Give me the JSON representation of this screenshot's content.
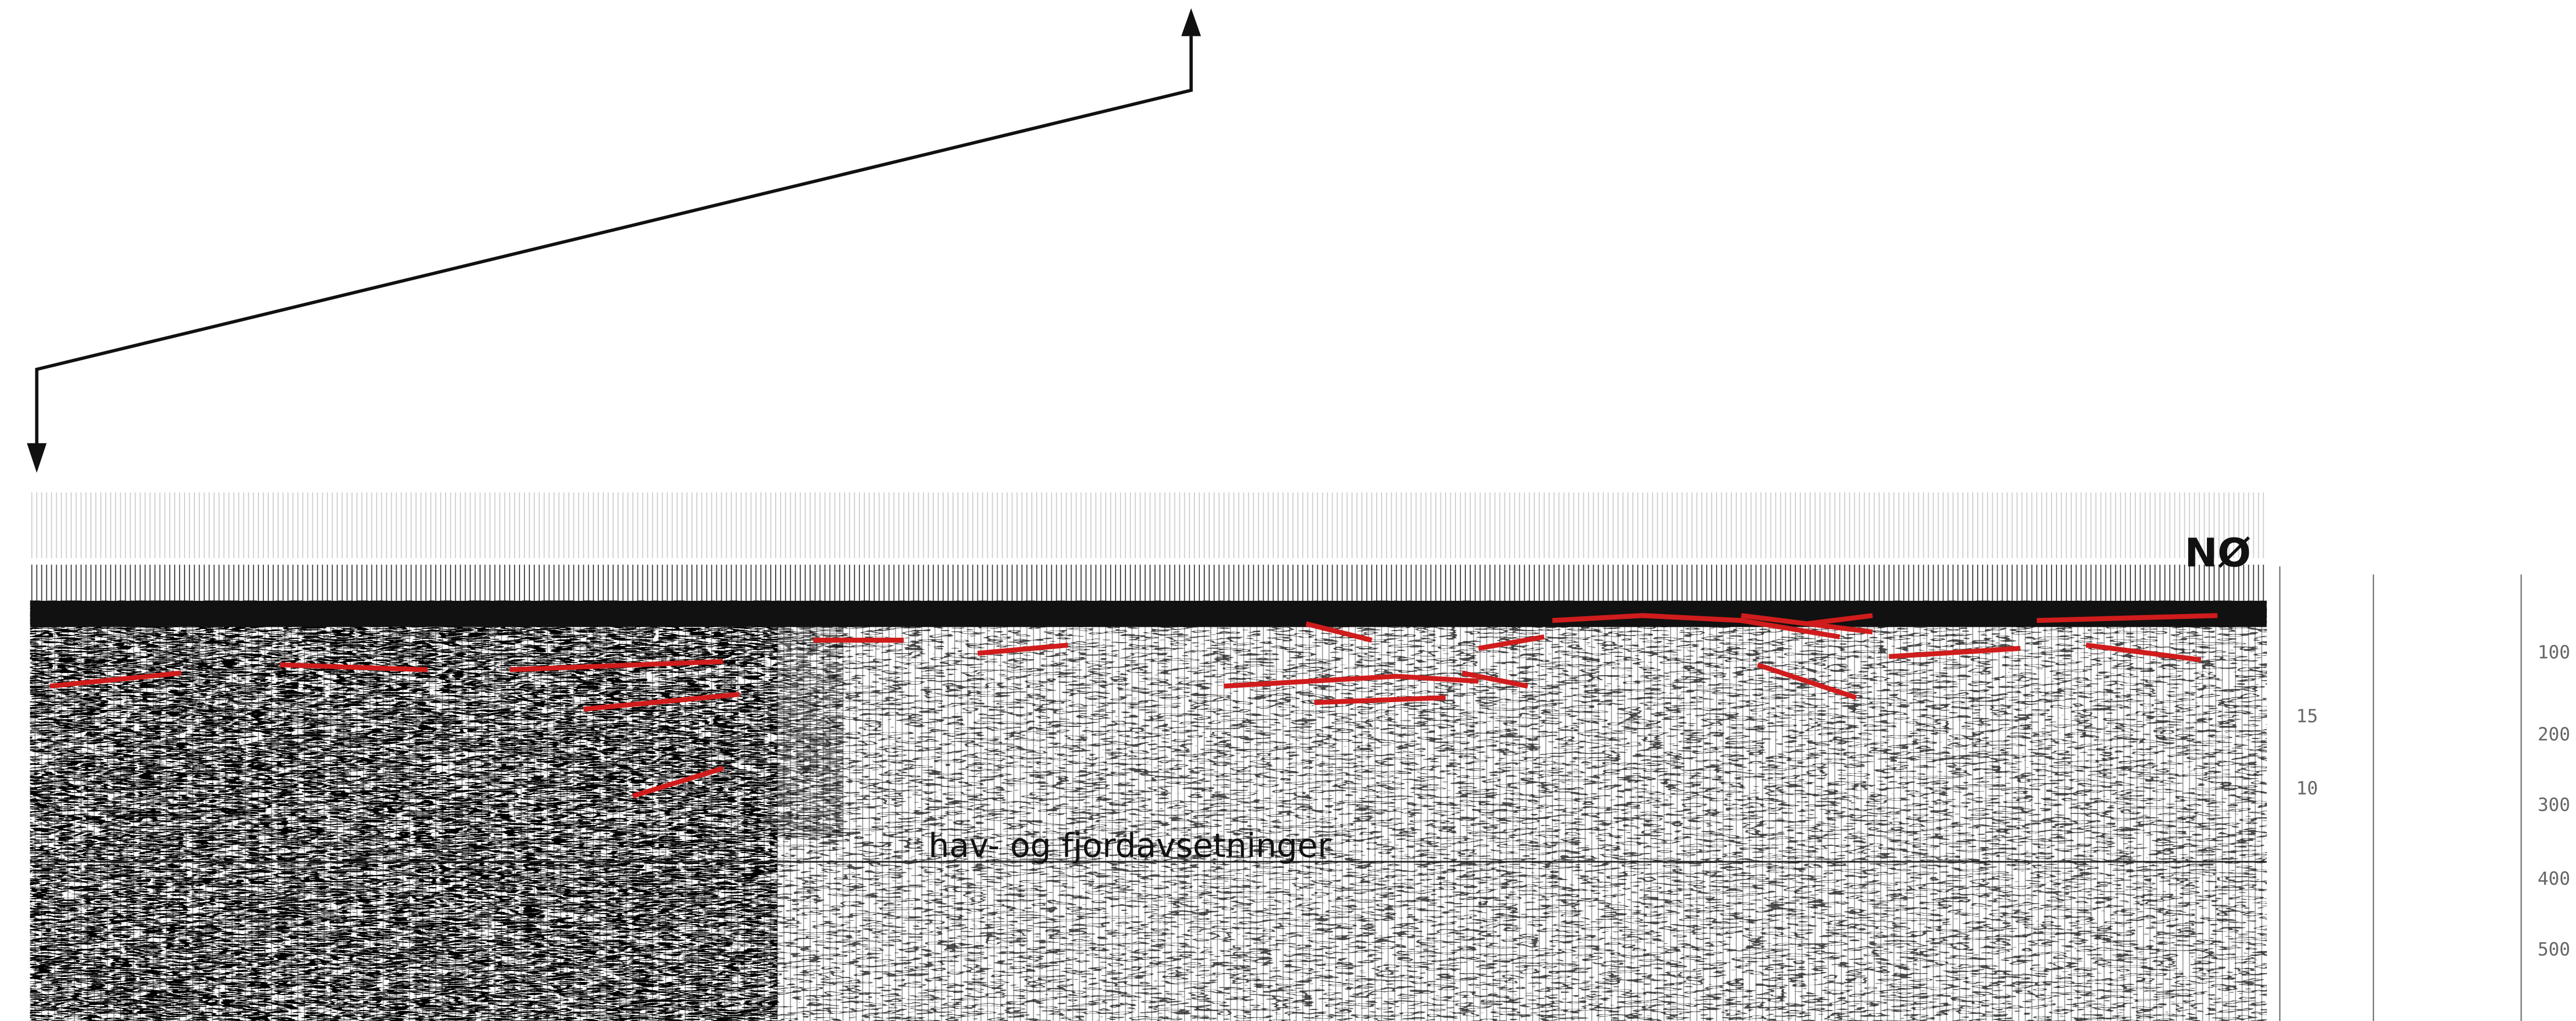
{
  "profile": {
    "direction": "NØ",
    "unit_label": "hav- og fjordavsetninger",
    "depth_axis": {
      "labels": [
        "15",
        "10"
      ]
    },
    "time_axis": {
      "labels": [
        "100",
        "200",
        "300",
        "400",
        "500"
      ]
    }
  }
}
